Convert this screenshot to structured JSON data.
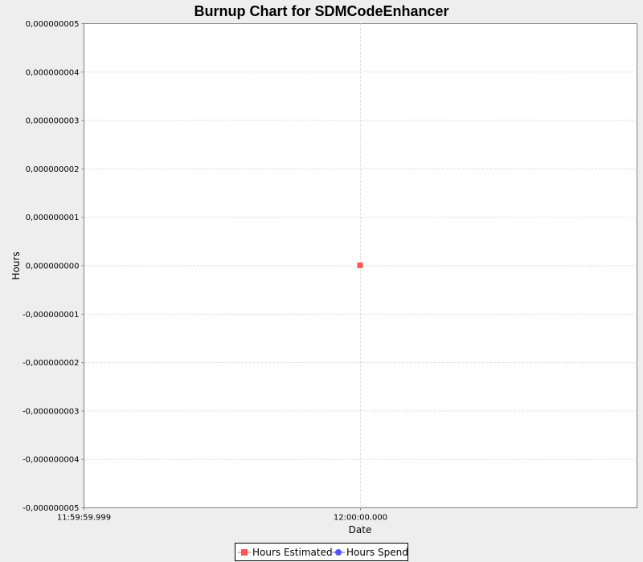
{
  "chart_data": {
    "type": "line",
    "title": "Burnup Chart for SDMCodeEnhancer",
    "xlabel": "Date",
    "ylabel": "Hours",
    "xticks": [
      "11:59:59.999",
      "12:00:00.000"
    ],
    "x": [
      "12:00:00.000"
    ],
    "ylim": [
      -5e-09,
      5e-09
    ],
    "yticks": [
      "0,000000005",
      "0,000000004",
      "0,000000003",
      "0,000000002",
      "0,000000001",
      "0,000000000",
      "-0,000000001",
      "-0,000000002",
      "-0,000000003",
      "-0,000000004",
      "-0,000000005"
    ],
    "grid": true,
    "legend_position": "bottom",
    "series": [
      {
        "name": "Hours Estimated",
        "color": "#ff5555",
        "marker": "square",
        "points": [
          {
            "x": "12:00:00.000",
            "y": 0
          }
        ]
      },
      {
        "name": "Hours Spend",
        "color": "#5555ff",
        "marker": "circle",
        "points": []
      }
    ]
  }
}
